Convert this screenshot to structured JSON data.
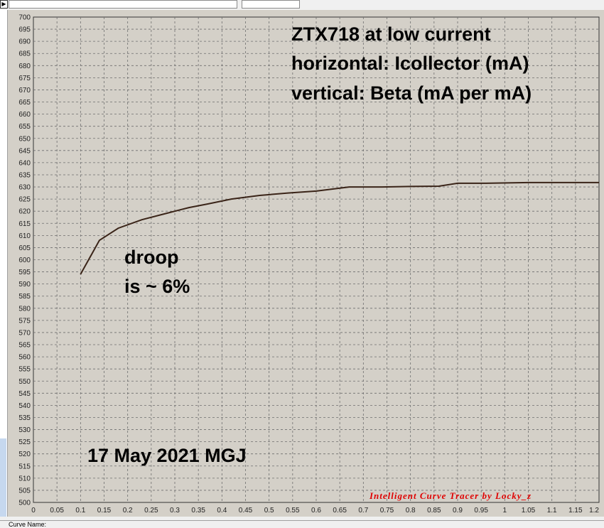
{
  "chart_data": {
    "type": "line",
    "annotations": {
      "title_line1": "ZTX718 at low current",
      "title_line2": "horizontal: Icollector (mA)",
      "title_line3": "vertical: Beta (mA per mA)",
      "note_line1": "droop",
      "note_line2": "is ~ 6%",
      "date_note": "17 May 2021  MGJ",
      "credit": "Intelligent Curve Tracer by Locky_z"
    },
    "xlim": [
      0,
      1.2
    ],
    "ylim": [
      500,
      700
    ],
    "x_ticks": [
      "0",
      "0.05",
      "0.1",
      "0.15",
      "0.2",
      "0.25",
      "0.3",
      "0.35",
      "0.4",
      "0.45",
      "0.5",
      "0.55",
      "0.6",
      "0.65",
      "0.7",
      "0.75",
      "0.8",
      "0.85",
      "0.9",
      "0.95",
      "1",
      "1.05",
      "1.1",
      "1.15",
      "1.2"
    ],
    "y_ticks": [
      "500",
      "505",
      "510",
      "515",
      "520",
      "525",
      "530",
      "535",
      "540",
      "545",
      "550",
      "555",
      "560",
      "565",
      "570",
      "575",
      "580",
      "585",
      "590",
      "595",
      "600",
      "605",
      "610",
      "615",
      "620",
      "625",
      "630",
      "635",
      "640",
      "645",
      "650",
      "655",
      "660",
      "665",
      "670",
      "675",
      "680",
      "685",
      "690",
      "695",
      "700"
    ],
    "grid": true,
    "series": [
      {
        "color": "#3a2418",
        "x": [
          0.1,
          0.14,
          0.18,
          0.23,
          0.28,
          0.33,
          0.37,
          0.42,
          0.48,
          0.54,
          0.6,
          0.67,
          0.74,
          0.8,
          0.86,
          0.9,
          0.96,
          1.05,
          1.2
        ],
        "y": [
          594,
          608,
          613,
          616.5,
          619,
          621.5,
          623,
          625,
          626.5,
          627.5,
          628.3,
          630,
          630,
          630.2,
          630.3,
          631.5,
          631.5,
          631.8,
          631.8
        ]
      }
    ]
  },
  "status": {
    "curve_name_label": "Curve Name:"
  },
  "colors": {
    "plot_bg": "#d4d0c8",
    "grid": "#6e6e6e",
    "curve": "#3a2418",
    "credit": "#e00000"
  }
}
